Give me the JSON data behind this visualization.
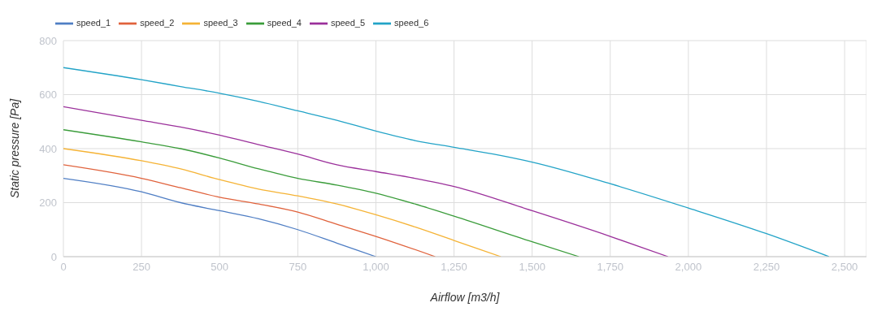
{
  "chart_data": {
    "type": "line",
    "xlabel": "Airflow [m3/h]",
    "ylabel": "Static pressure [Pa]",
    "xlim": [
      0,
      2570
    ],
    "xticks": [
      0,
      250,
      500,
      750,
      {
        "value": 1000,
        "label": "1,000"
      },
      {
        "value": 1250,
        "label": "1,250"
      },
      {
        "value": 1500,
        "label": "1,500"
      },
      {
        "value": 1750,
        "label": "1,750"
      },
      {
        "value": 2000,
        "label": "2,000"
      },
      {
        "value": 2250,
        "label": "2,250"
      },
      {
        "value": 2500,
        "label": "2,500"
      }
    ],
    "ylim": [
      0,
      800
    ],
    "yticks": [
      0,
      200,
      400,
      600,
      800
    ],
    "grid": true,
    "legend": "top left",
    "marker": "none",
    "line_style": "solid",
    "series": [
      {
        "name": "speed_1",
        "color": "#4f7ec4",
        "x": [
          0,
          250,
          375,
          500,
          625,
          750,
          875,
          1000
        ],
        "values": [
          290,
          240,
          200,
          170,
          140,
          100,
          50,
          0
        ]
      },
      {
        "name": "speed_2",
        "color": "#e0623c",
        "x": [
          0,
          250,
          375,
          500,
          625,
          750,
          875,
          1000,
          1190
        ],
        "values": [
          340,
          290,
          255,
          220,
          195,
          165,
          120,
          75,
          0
        ]
      },
      {
        "name": "speed_3",
        "color": "#f5b335",
        "x": [
          0,
          250,
          375,
          500,
          625,
          750,
          875,
          1000,
          1125,
          1250,
          1400
        ],
        "values": [
          400,
          355,
          325,
          285,
          250,
          225,
          195,
          155,
          110,
          60,
          0
        ]
      },
      {
        "name": "speed_4",
        "color": "#3a9c3a",
        "x": [
          0,
          250,
          375,
          500,
          625,
          750,
          875,
          1000,
          1125,
          1250,
          1500,
          1650
        ],
        "values": [
          470,
          425,
          400,
          365,
          325,
          290,
          265,
          235,
          195,
          150,
          55,
          0
        ]
      },
      {
        "name": "speed_5",
        "color": "#9b309b",
        "x": [
          0,
          250,
          375,
          500,
          625,
          750,
          875,
          1000,
          1125,
          1250,
          1500,
          1750,
          1935
        ],
        "values": [
          555,
          505,
          480,
          450,
          415,
          380,
          340,
          315,
          290,
          260,
          170,
          75,
          0
        ]
      },
      {
        "name": "speed_6",
        "color": "#22a3c7",
        "x": [
          0,
          250,
          375,
          500,
          625,
          750,
          875,
          1000,
          1125,
          1250,
          1375,
          1500,
          1750,
          2000,
          2250,
          2450
        ],
        "values": [
          700,
          655,
          630,
          605,
          575,
          540,
          505,
          465,
          430,
          405,
          380,
          350,
          270,
          180,
          85,
          0
        ]
      }
    ]
  }
}
